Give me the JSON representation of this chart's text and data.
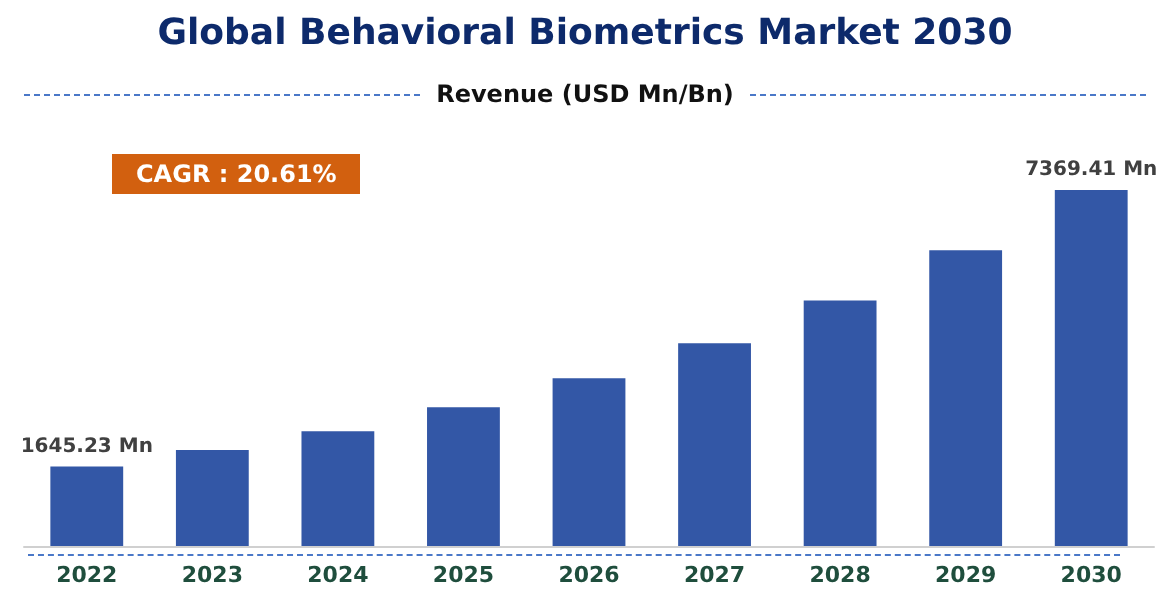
{
  "chart_data": {
    "type": "bar",
    "title": "Global Behavioral Biometrics Market 2030",
    "subtitle": "Revenue (USD Mn/Bn)",
    "categories": [
      "2022",
      "2023",
      "2024",
      "2025",
      "2026",
      "2027",
      "2028",
      "2029",
      "2030"
    ],
    "values": [
      1645.23,
      1985,
      2376,
      2873,
      3474,
      4196,
      5083,
      6121,
      7369.41
    ],
    "value_labels": [
      "1645.23 Mn",
      null,
      null,
      null,
      null,
      null,
      null,
      null,
      "7369.41 Mn"
    ],
    "color": "#3357a6",
    "annotations": [
      "CAGR : 20.61%"
    ]
  }
}
